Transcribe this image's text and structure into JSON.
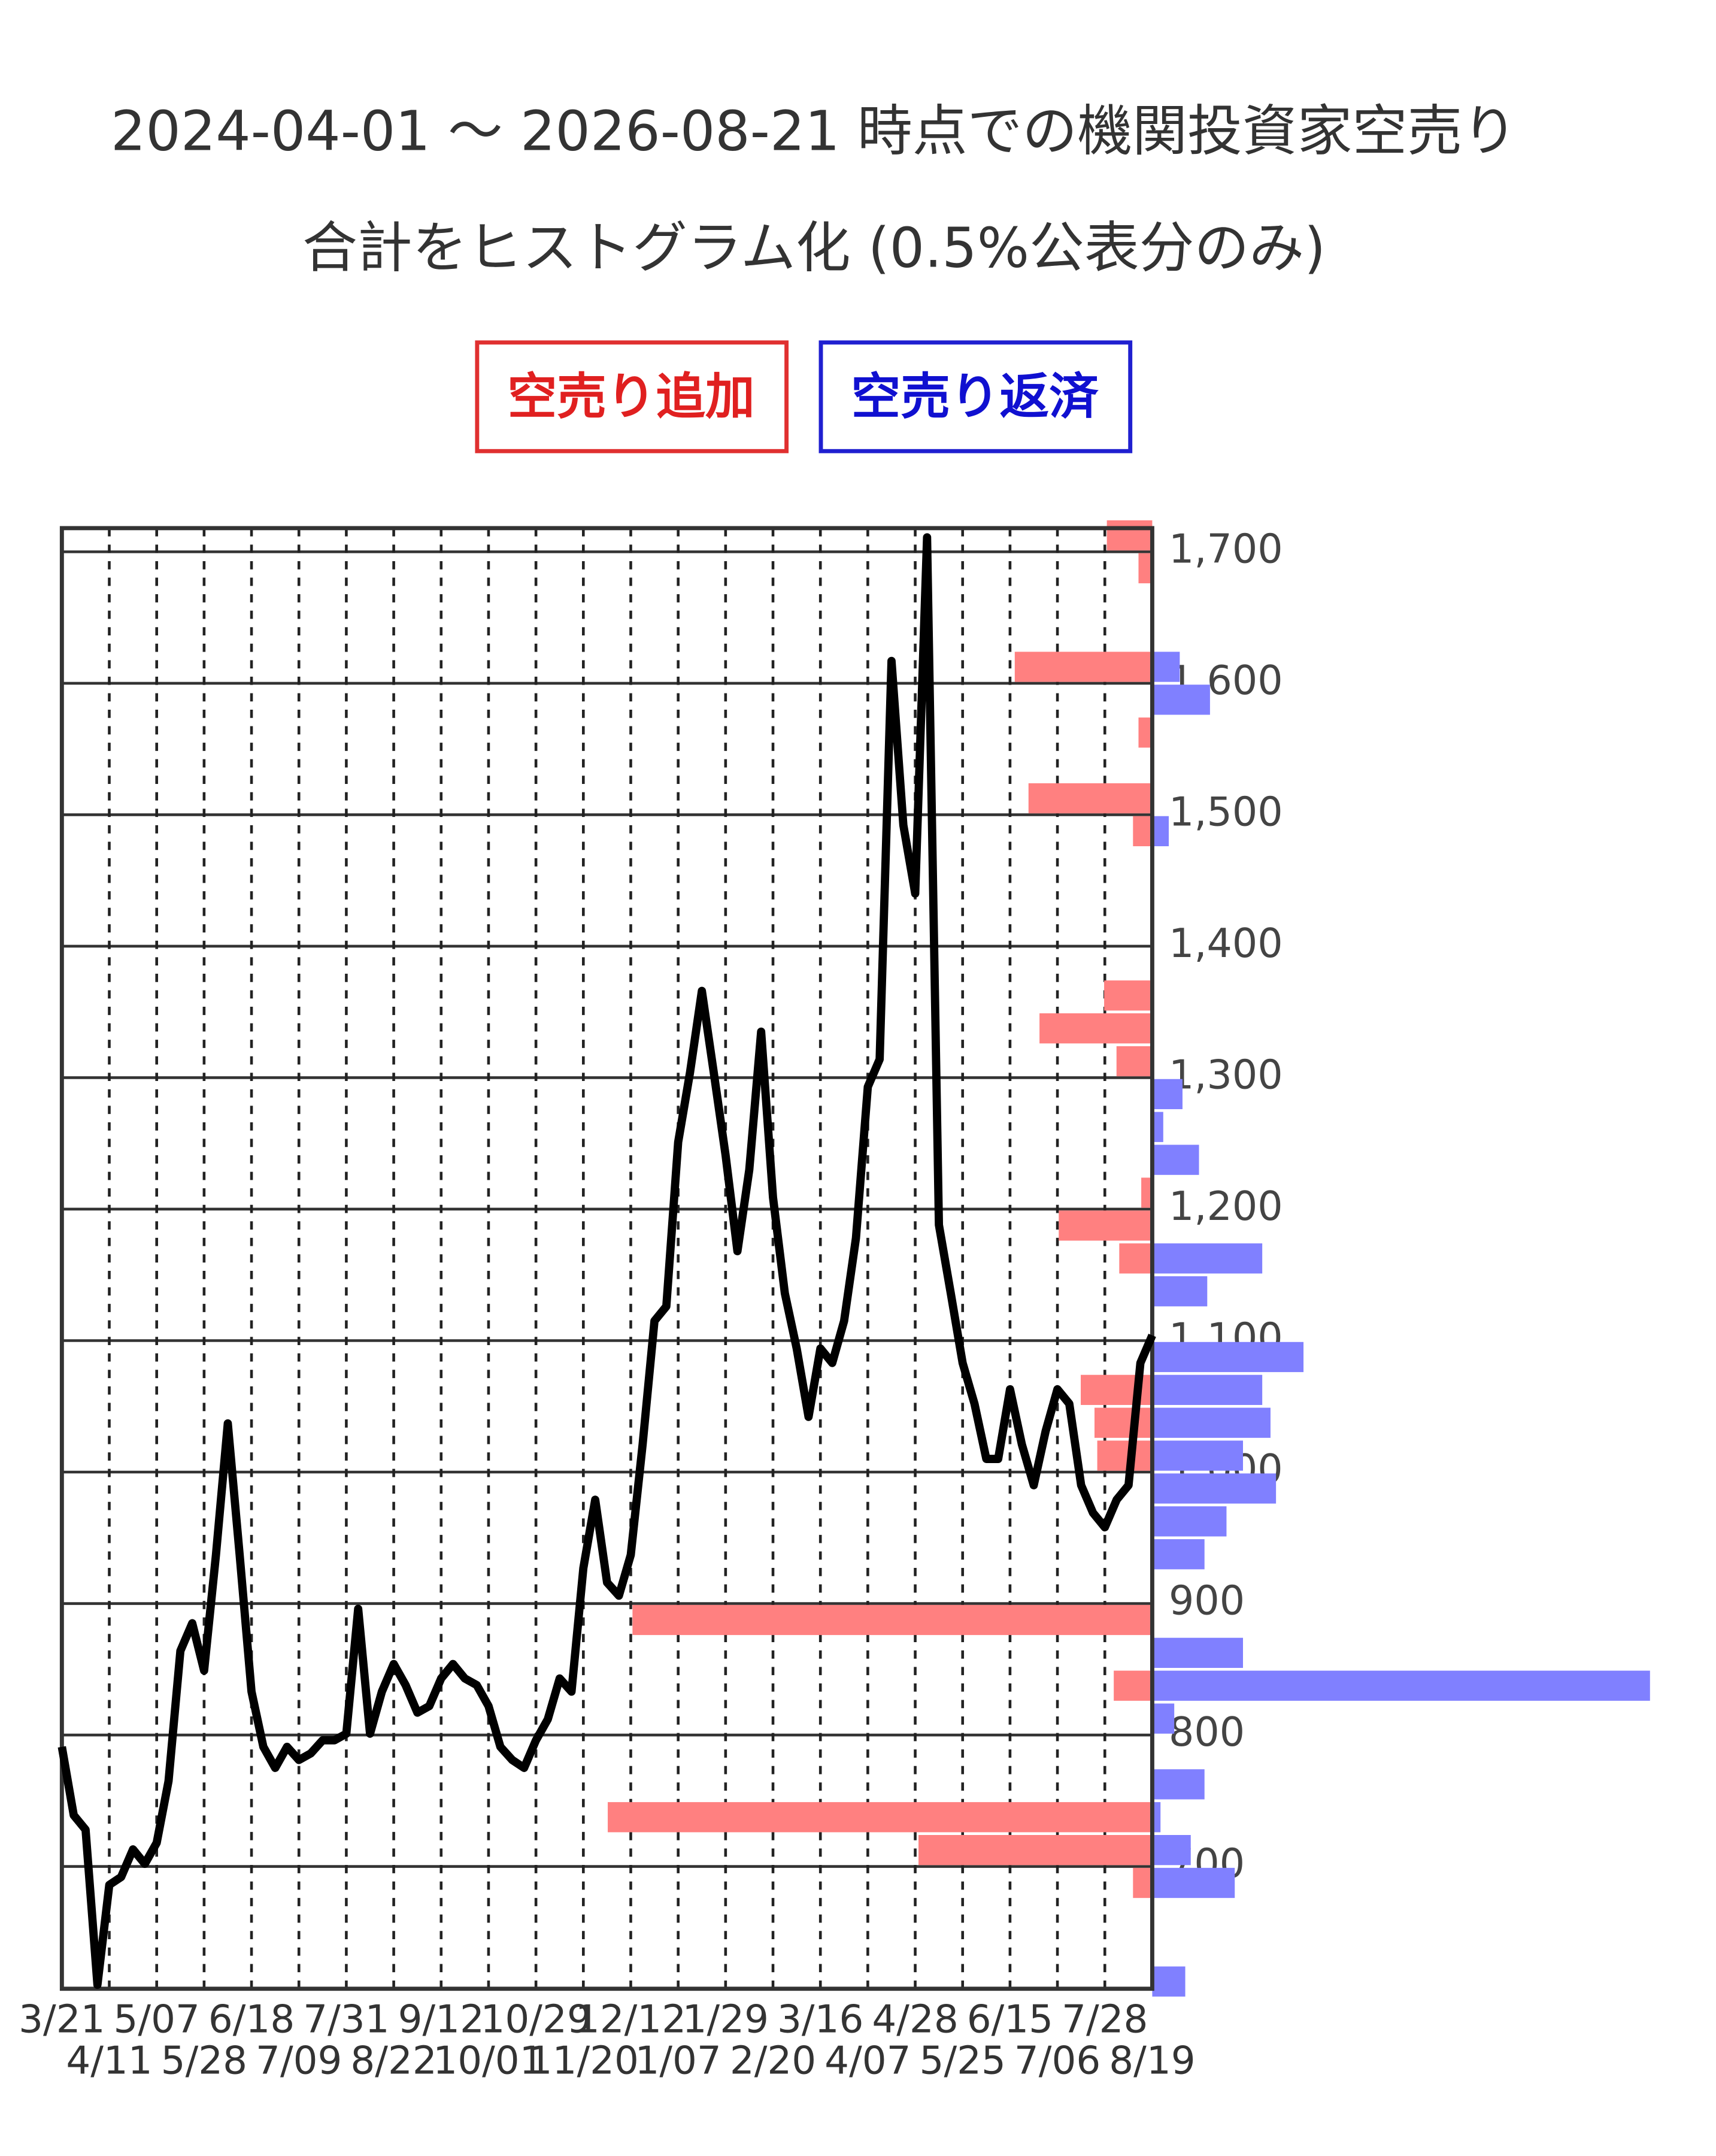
{
  "chart_data": {
    "type": "line",
    "title": "2024-04-01 ～ 2026-08-21 時点での機関投資家空売り",
    "subtitle": "合計をヒストグラム化 (0.5%公表分のみ)",
    "categories": [
      "3/21",
      null,
      null,
      null,
      "4/11",
      null,
      null,
      null,
      "5/07",
      null,
      null,
      null,
      "5/28",
      null,
      null,
      null,
      "6/18",
      null,
      null,
      null,
      "7/09",
      null,
      null,
      null,
      "7/31",
      null,
      null,
      null,
      "8/22",
      null,
      null,
      null,
      "9/12",
      null,
      null,
      null,
      "10/01",
      null,
      null,
      null,
      "10/29",
      null,
      null,
      null,
      "11/20",
      null,
      null,
      null,
      "12/12",
      null,
      null,
      null,
      "1/07",
      null,
      null,
      null,
      "1/29",
      null,
      null,
      null,
      "2/20",
      null,
      null,
      null,
      "3/16",
      null,
      null,
      null,
      "4/07",
      null,
      null,
      null,
      "4/28",
      null,
      null,
      null,
      "5/25",
      null,
      null,
      null,
      "6/15",
      null,
      null,
      null,
      "7/06",
      null,
      null,
      null,
      "7/28",
      null,
      null,
      null,
      "8/19"
    ],
    "values": [
      791,
      739,
      728,
      610,
      686,
      692,
      713,
      702,
      718,
      765,
      864,
      885,
      849,
      937,
      1037,
      937,
      833,
      791,
      775,
      791,
      781,
      786,
      796,
      796,
      801,
      896,
      801,
      833,
      854,
      838,
      817,
      822,
      843,
      854,
      843,
      838,
      822,
      791,
      781,
      775,
      796,
      812,
      843,
      833,
      927,
      979,
      916,
      906,
      937,
      1021,
      1115,
      1126,
      1251,
      1304,
      1366,
      1304,
      1241,
      1168,
      1230,
      1335,
      1209,
      1136,
      1094,
      1042,
      1094,
      1083,
      1115,
      1178,
      1293,
      1314,
      1617,
      1492,
      1440,
      1711,
      1188,
      1136,
      1083,
      1052,
      1010,
      1010,
      1063,
      1021,
      990,
      1031,
      1063,
      1052,
      990,
      969,
      958,
      979,
      990,
      1083,
      1104
    ],
    "color": "#000000",
    "ylim": [
      607,
      1718
    ],
    "yticks": [
      700,
      800,
      900,
      {
        "value": 1000,
        "label": "1,000"
      },
      {
        "value": 1100,
        "label": "1,100"
      },
      {
        "value": 1200,
        "label": "1,200"
      },
      {
        "value": 1300,
        "label": "1,300"
      },
      {
        "value": 1400,
        "label": "1,400"
      },
      {
        "value": 1500,
        "label": "1,500"
      },
      {
        "value": 1600,
        "label": "1,600"
      },
      {
        "value": 1700,
        "label": "1,700"
      }
    ],
    "grid": true,
    "histogram": {
      "bins": [
        600,
        625,
        650,
        675,
        700,
        725,
        750,
        775,
        800,
        825,
        850,
        875,
        900,
        925,
        950,
        975,
        1000,
        1025,
        1050,
        1075,
        1100,
        1125,
        1150,
        1175,
        1200,
        1225,
        1250,
        1275,
        1300,
        1325,
        1350,
        1375,
        1400,
        1425,
        1450,
        1475,
        1500,
        1525,
        1550,
        1575,
        1600,
        1625,
        1650,
        1675,
        1700,
        1725
      ],
      "series": [
        {
          "name": "空売り追加",
          "color": "#ff8080",
          "values": [
            0,
            0,
            0,
            14,
            170,
            396,
            0,
            0,
            0,
            28,
            0,
            378,
            0,
            0,
            0,
            0,
            40,
            42,
            52,
            0,
            0,
            0,
            24,
            68,
            8,
            0,
            0,
            0,
            26,
            82,
            35,
            0,
            0,
            0,
            0,
            14,
            90,
            0,
            10,
            0,
            100,
            0,
            0,
            10,
            33
          ]
        },
        {
          "name": "空売り返済",
          "color": "#8080ff",
          "values": [
            24,
            0,
            0,
            60,
            28,
            6,
            38,
            0,
            16,
            362,
            66,
            0,
            0,
            38,
            54,
            90,
            66,
            86,
            80,
            110,
            0,
            40,
            80,
            0,
            0,
            34,
            8,
            22,
            0,
            0,
            0,
            0,
            0,
            0,
            0,
            12,
            0,
            0,
            0,
            42,
            20,
            0,
            0,
            0,
            0
          ]
        }
      ]
    }
  }
}
